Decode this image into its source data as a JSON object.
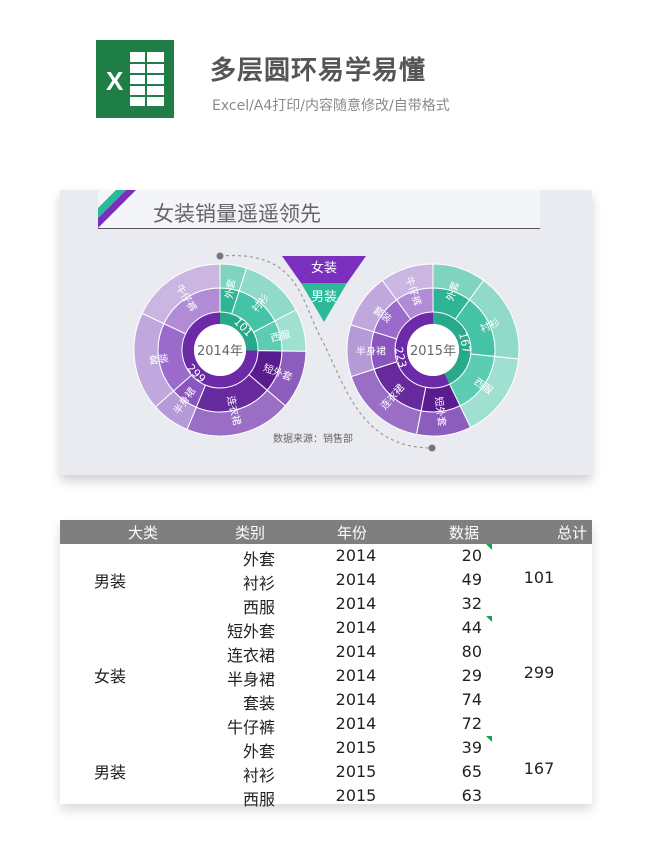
{
  "header": {
    "title": "多层圆环易学易懂",
    "subtitle": "Excel/A4打印/内容随意修改/自带格式",
    "logo_letter": "X"
  },
  "chart_card": {
    "title": "女装销量遥遥领先",
    "legend": [
      "女装",
      "男装"
    ],
    "source": "数据来源：销售部",
    "colors": {
      "women": "#7b2fbe",
      "men": "#2db89a"
    }
  },
  "chart_data": [
    {
      "type": "sunburst",
      "center_label": "2014年",
      "inner": [
        {
          "name": "男装",
          "value": 101
        },
        {
          "name": "女装",
          "value": 299
        }
      ],
      "inner_labels": [
        "101",
        "299"
      ],
      "outer": [
        {
          "name": "外套",
          "value": 20
        },
        {
          "name": "衬衫",
          "value": 49
        },
        {
          "name": "西服",
          "value": 32
        },
        {
          "name": "短外套",
          "value": 44
        },
        {
          "name": "连衣裙",
          "value": 80
        },
        {
          "name": "半身裙",
          "value": 29
        },
        {
          "name": "套装",
          "value": 74
        },
        {
          "name": "牛仔裤",
          "value": 72
        }
      ]
    },
    {
      "type": "sunburst",
      "center_label": "2015年",
      "inner": [
        {
          "name": "男装",
          "value": 167
        },
        {
          "name": "女装",
          "value": 223
        }
      ],
      "inner_labels": [
        "167",
        "223"
      ],
      "outer": [
        {
          "name": "外套",
          "value": 39
        },
        {
          "name": "衬衫",
          "value": 65
        },
        {
          "name": "西服",
          "value": 63
        },
        {
          "name": "短外套",
          "value": 40
        },
        {
          "name": "连衣裙",
          "value": 66
        },
        {
          "name": "半身裙",
          "value": 38
        },
        {
          "name": "套装",
          "value": 40
        },
        {
          "name": "牛仔裤",
          "value": 39
        }
      ]
    }
  ],
  "table": {
    "headers": [
      "大类",
      "类别",
      "年份",
      "数据",
      "总计"
    ],
    "rows": [
      {
        "type": "外套",
        "year": "2014",
        "value": "20"
      },
      {
        "type": "衬衫",
        "year": "2014",
        "value": "49"
      },
      {
        "type": "西服",
        "year": "2014",
        "value": "32"
      },
      {
        "type": "短外套",
        "year": "2014",
        "value": "44"
      },
      {
        "type": "连衣裙",
        "year": "2014",
        "value": "80"
      },
      {
        "type": "半身裙",
        "year": "2014",
        "value": "29"
      },
      {
        "type": "套装",
        "year": "2014",
        "value": "74"
      },
      {
        "type": "牛仔裤",
        "year": "2014",
        "value": "72"
      },
      {
        "type": "外套",
        "year": "2015",
        "value": "39"
      },
      {
        "type": "衬衫",
        "year": "2015",
        "value": "65"
      },
      {
        "type": "西服",
        "year": "2015",
        "value": "63"
      }
    ],
    "groups": [
      {
        "name": "男装",
        "total": "101"
      },
      {
        "name": "女装",
        "total": "299"
      },
      {
        "name": "男装",
        "total": "167"
      }
    ]
  }
}
